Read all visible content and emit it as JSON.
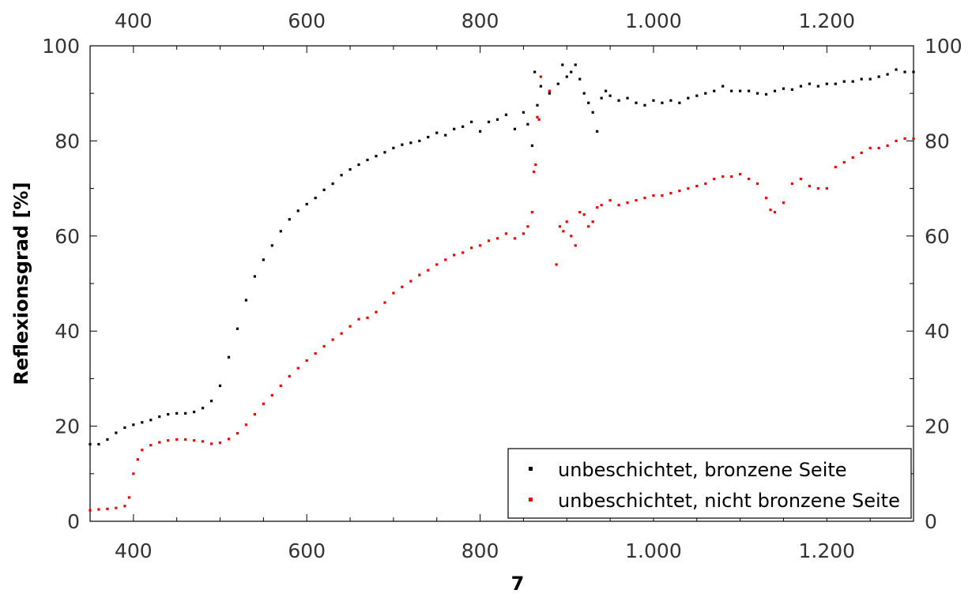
{
  "chart_data": {
    "type": "scatter",
    "xlabel": "7",
    "ylabel": "Reflexionsgrad [%]",
    "xlim": [
      350,
      1300
    ],
    "ylim": [
      0,
      100
    ],
    "x_ticks": [
      400,
      600,
      800,
      1000,
      1200
    ],
    "x_tick_labels": [
      "400",
      "600",
      "800",
      "1.000",
      "1.200"
    ],
    "y_ticks": [
      0,
      20,
      40,
      60,
      80,
      100
    ],
    "y_tick_labels": [
      "0",
      "20",
      "40",
      "60",
      "80",
      "100"
    ],
    "grid": false,
    "legend_position": "bottom-right",
    "series": [
      {
        "name": "unbeschichtet, bronzene Seite",
        "color": "#000000",
        "points": [
          [
            350,
            16.2
          ],
          [
            360,
            16.2
          ],
          [
            370,
            17.2
          ],
          [
            380,
            18.6
          ],
          [
            390,
            19.7
          ],
          [
            400,
            20.3
          ],
          [
            410,
            20.8
          ],
          [
            420,
            21.3
          ],
          [
            430,
            22.0
          ],
          [
            440,
            22.5
          ],
          [
            450,
            22.7
          ],
          [
            460,
            22.7
          ],
          [
            470,
            23.0
          ],
          [
            480,
            23.8
          ],
          [
            490,
            25.3
          ],
          [
            500,
            28.5
          ],
          [
            510,
            34.5
          ],
          [
            520,
            40.5
          ],
          [
            530,
            46.5
          ],
          [
            540,
            51.5
          ],
          [
            550,
            55.0
          ],
          [
            560,
            58.0
          ],
          [
            570,
            61.0
          ],
          [
            580,
            63.5
          ],
          [
            590,
            65.3
          ],
          [
            600,
            66.7
          ],
          [
            610,
            68.0
          ],
          [
            620,
            69.7
          ],
          [
            630,
            71.0
          ],
          [
            640,
            72.8
          ],
          [
            650,
            74.0
          ],
          [
            660,
            75.0
          ],
          [
            670,
            76.0
          ],
          [
            680,
            76.8
          ],
          [
            690,
            77.6
          ],
          [
            700,
            78.5
          ],
          [
            710,
            79.2
          ],
          [
            720,
            79.6
          ],
          [
            730,
            80.0
          ],
          [
            740,
            80.8
          ],
          [
            750,
            81.7
          ],
          [
            760,
            81.2
          ],
          [
            770,
            82.5
          ],
          [
            780,
            83.0
          ],
          [
            790,
            84.0
          ],
          [
            800,
            82.0
          ],
          [
            810,
            84.0
          ],
          [
            820,
            84.5
          ],
          [
            830,
            85.5
          ],
          [
            840,
            82.5
          ],
          [
            850,
            86.0
          ],
          [
            855,
            83.5
          ],
          [
            860,
            79.0
          ],
          [
            863,
            94.5
          ],
          [
            866,
            87.5
          ],
          [
            870,
            91.5
          ],
          [
            880,
            90.0
          ],
          [
            890,
            92.0
          ],
          [
            895,
            96.0
          ],
          [
            900,
            93.5
          ],
          [
            905,
            94.5
          ],
          [
            910,
            96.0
          ],
          [
            915,
            93.0
          ],
          [
            920,
            90.0
          ],
          [
            925,
            88.0
          ],
          [
            930,
            86.0
          ],
          [
            935,
            82.0
          ],
          [
            940,
            89.0
          ],
          [
            945,
            90.5
          ],
          [
            950,
            89.5
          ],
          [
            960,
            88.5
          ],
          [
            970,
            89.0
          ],
          [
            980,
            88.0
          ],
          [
            990,
            87.5
          ],
          [
            1000,
            88.5
          ],
          [
            1010,
            88.0
          ],
          [
            1020,
            88.5
          ],
          [
            1030,
            88.0
          ],
          [
            1040,
            89.0
          ],
          [
            1050,
            89.5
          ],
          [
            1060,
            90.0
          ],
          [
            1070,
            90.5
          ],
          [
            1080,
            91.5
          ],
          [
            1090,
            90.5
          ],
          [
            1100,
            90.5
          ],
          [
            1110,
            90.5
          ],
          [
            1120,
            90.0
          ],
          [
            1130,
            89.8
          ],
          [
            1140,
            90.5
          ],
          [
            1150,
            91.0
          ],
          [
            1160,
            90.8
          ],
          [
            1170,
            91.5
          ],
          [
            1180,
            92.0
          ],
          [
            1190,
            91.5
          ],
          [
            1200,
            92.0
          ],
          [
            1210,
            92.0
          ],
          [
            1220,
            92.5
          ],
          [
            1230,
            92.5
          ],
          [
            1240,
            93.0
          ],
          [
            1250,
            93.0
          ],
          [
            1260,
            93.5
          ],
          [
            1270,
            94.0
          ],
          [
            1280,
            95.0
          ],
          [
            1290,
            94.5
          ],
          [
            1300,
            94.5
          ]
        ]
      },
      {
        "name": "unbeschichtet, nicht bronzene Seite",
        "color": "#ee0000",
        "points": [
          [
            350,
            2.3
          ],
          [
            360,
            2.5
          ],
          [
            370,
            2.6
          ],
          [
            380,
            2.8
          ],
          [
            390,
            3.2
          ],
          [
            395,
            5.0
          ],
          [
            400,
            10.0
          ],
          [
            405,
            13.0
          ],
          [
            410,
            15.0
          ],
          [
            420,
            16.0
          ],
          [
            430,
            16.6
          ],
          [
            440,
            17.0
          ],
          [
            450,
            17.2
          ],
          [
            460,
            17.2
          ],
          [
            470,
            17.0
          ],
          [
            480,
            16.8
          ],
          [
            490,
            16.3
          ],
          [
            500,
            16.5
          ],
          [
            510,
            17.3
          ],
          [
            520,
            18.5
          ],
          [
            530,
            20.3
          ],
          [
            540,
            22.5
          ],
          [
            550,
            24.7
          ],
          [
            560,
            26.5
          ],
          [
            570,
            28.5
          ],
          [
            580,
            30.5
          ],
          [
            590,
            32.2
          ],
          [
            600,
            33.8
          ],
          [
            610,
            35.3
          ],
          [
            620,
            36.8
          ],
          [
            630,
            38.2
          ],
          [
            640,
            39.5
          ],
          [
            650,
            41.0
          ],
          [
            660,
            42.5
          ],
          [
            670,
            42.8
          ],
          [
            680,
            44.0
          ],
          [
            690,
            46.0
          ],
          [
            700,
            48.0
          ],
          [
            710,
            49.3
          ],
          [
            720,
            50.5
          ],
          [
            730,
            51.8
          ],
          [
            740,
            52.8
          ],
          [
            750,
            54.0
          ],
          [
            760,
            55.0
          ],
          [
            770,
            56.0
          ],
          [
            780,
            56.5
          ],
          [
            790,
            57.5
          ],
          [
            800,
            58.0
          ],
          [
            810,
            59.0
          ],
          [
            820,
            59.5
          ],
          [
            830,
            60.5
          ],
          [
            840,
            59.5
          ],
          [
            850,
            60.5
          ],
          [
            855,
            62.0
          ],
          [
            860,
            65.0
          ],
          [
            862,
            73.5
          ],
          [
            864,
            75.0
          ],
          [
            866,
            85.0
          ],
          [
            868,
            84.5
          ],
          [
            870,
            93.5
          ],
          [
            880,
            90.5
          ],
          [
            888,
            54.0
          ],
          [
            892,
            62.0
          ],
          [
            896,
            61.0
          ],
          [
            900,
            63.0
          ],
          [
            905,
            60.0
          ],
          [
            910,
            58.0
          ],
          [
            915,
            65.0
          ],
          [
            920,
            64.5
          ],
          [
            925,
            62.0
          ],
          [
            930,
            63.0
          ],
          [
            935,
            66.0
          ],
          [
            940,
            66.5
          ],
          [
            950,
            67.5
          ],
          [
            960,
            66.5
          ],
          [
            970,
            67.0
          ],
          [
            980,
            67.5
          ],
          [
            990,
            68.0
          ],
          [
            1000,
            68.5
          ],
          [
            1010,
            68.5
          ],
          [
            1020,
            69.0
          ],
          [
            1030,
            69.5
          ],
          [
            1040,
            70.0
          ],
          [
            1050,
            70.5
          ],
          [
            1060,
            71.0
          ],
          [
            1070,
            72.0
          ],
          [
            1080,
            72.5
          ],
          [
            1090,
            72.5
          ],
          [
            1100,
            73.0
          ],
          [
            1110,
            72.0
          ],
          [
            1120,
            71.0
          ],
          [
            1130,
            68.0
          ],
          [
            1135,
            65.5
          ],
          [
            1140,
            65.0
          ],
          [
            1150,
            67.0
          ],
          [
            1160,
            71.0
          ],
          [
            1170,
            72.0
          ],
          [
            1180,
            70.5
          ],
          [
            1190,
            70.0
          ],
          [
            1200,
            70.0
          ],
          [
            1210,
            74.5
          ],
          [
            1220,
            75.5
          ],
          [
            1230,
            76.5
          ],
          [
            1240,
            77.5
          ],
          [
            1250,
            78.5
          ],
          [
            1260,
            78.5
          ],
          [
            1270,
            79.0
          ],
          [
            1280,
            80.0
          ],
          [
            1290,
            80.5
          ],
          [
            1300,
            80.5
          ]
        ]
      }
    ]
  }
}
